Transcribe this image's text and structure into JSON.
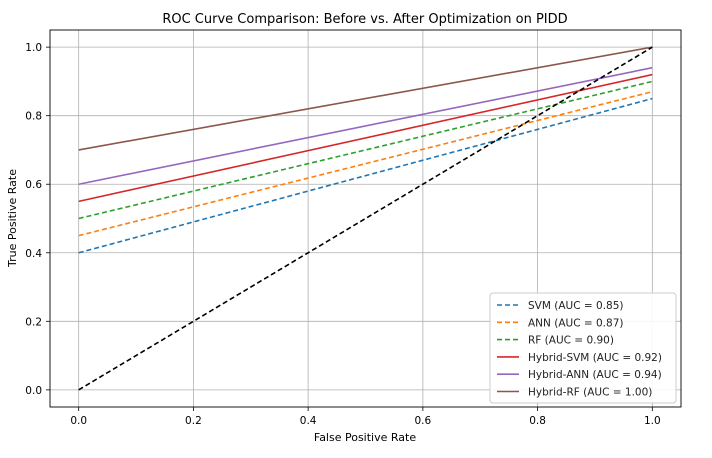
{
  "chart_data": {
    "type": "line",
    "title": "ROC Curve Comparison: Before vs. After Optimization on PIDD",
    "xlabel": "False Positive Rate",
    "ylabel": "True Positive Rate",
    "xlim": [
      -0.05,
      1.05
    ],
    "ylim": [
      -0.05,
      1.05
    ],
    "xticks": [
      "0.0",
      "0.2",
      "0.4",
      "0.6",
      "0.8",
      "1.0"
    ],
    "yticks": [
      "0.0",
      "0.2",
      "0.4",
      "0.6",
      "0.8",
      "1.0"
    ],
    "grid": true,
    "legend_position": "lower-right",
    "series": [
      {
        "name": "SVM (AUC = 0.85)",
        "color": "#1f77b4",
        "dash": "dashed",
        "x": [
          0,
          1
        ],
        "y": [
          0.4,
          0.85
        ]
      },
      {
        "name": "ANN (AUC = 0.87)",
        "color": "#ff7f0e",
        "dash": "dashed",
        "x": [
          0,
          1
        ],
        "y": [
          0.45,
          0.87
        ]
      },
      {
        "name": "RF (AUC = 0.90)",
        "color": "#2ca02c",
        "dash": "dashed",
        "x": [
          0,
          1
        ],
        "y": [
          0.5,
          0.9
        ]
      },
      {
        "name": "Hybrid-SVM (AUC = 0.92)",
        "color": "#d62728",
        "dash": "solid",
        "x": [
          0,
          1
        ],
        "y": [
          0.55,
          0.92
        ]
      },
      {
        "name": "Hybrid-ANN (AUC = 0.94)",
        "color": "#9467bd",
        "dash": "solid",
        "x": [
          0,
          1
        ],
        "y": [
          0.6,
          0.94
        ]
      },
      {
        "name": "Hybrid-RF (AUC = 1.00)",
        "color": "#8c564b",
        "dash": "solid",
        "x": [
          0,
          1
        ],
        "y": [
          0.7,
          1.0
        ]
      }
    ],
    "reference_line": {
      "color": "#000000",
      "dash": "dashed",
      "x": [
        0,
        1
      ],
      "y": [
        0,
        1
      ]
    }
  }
}
